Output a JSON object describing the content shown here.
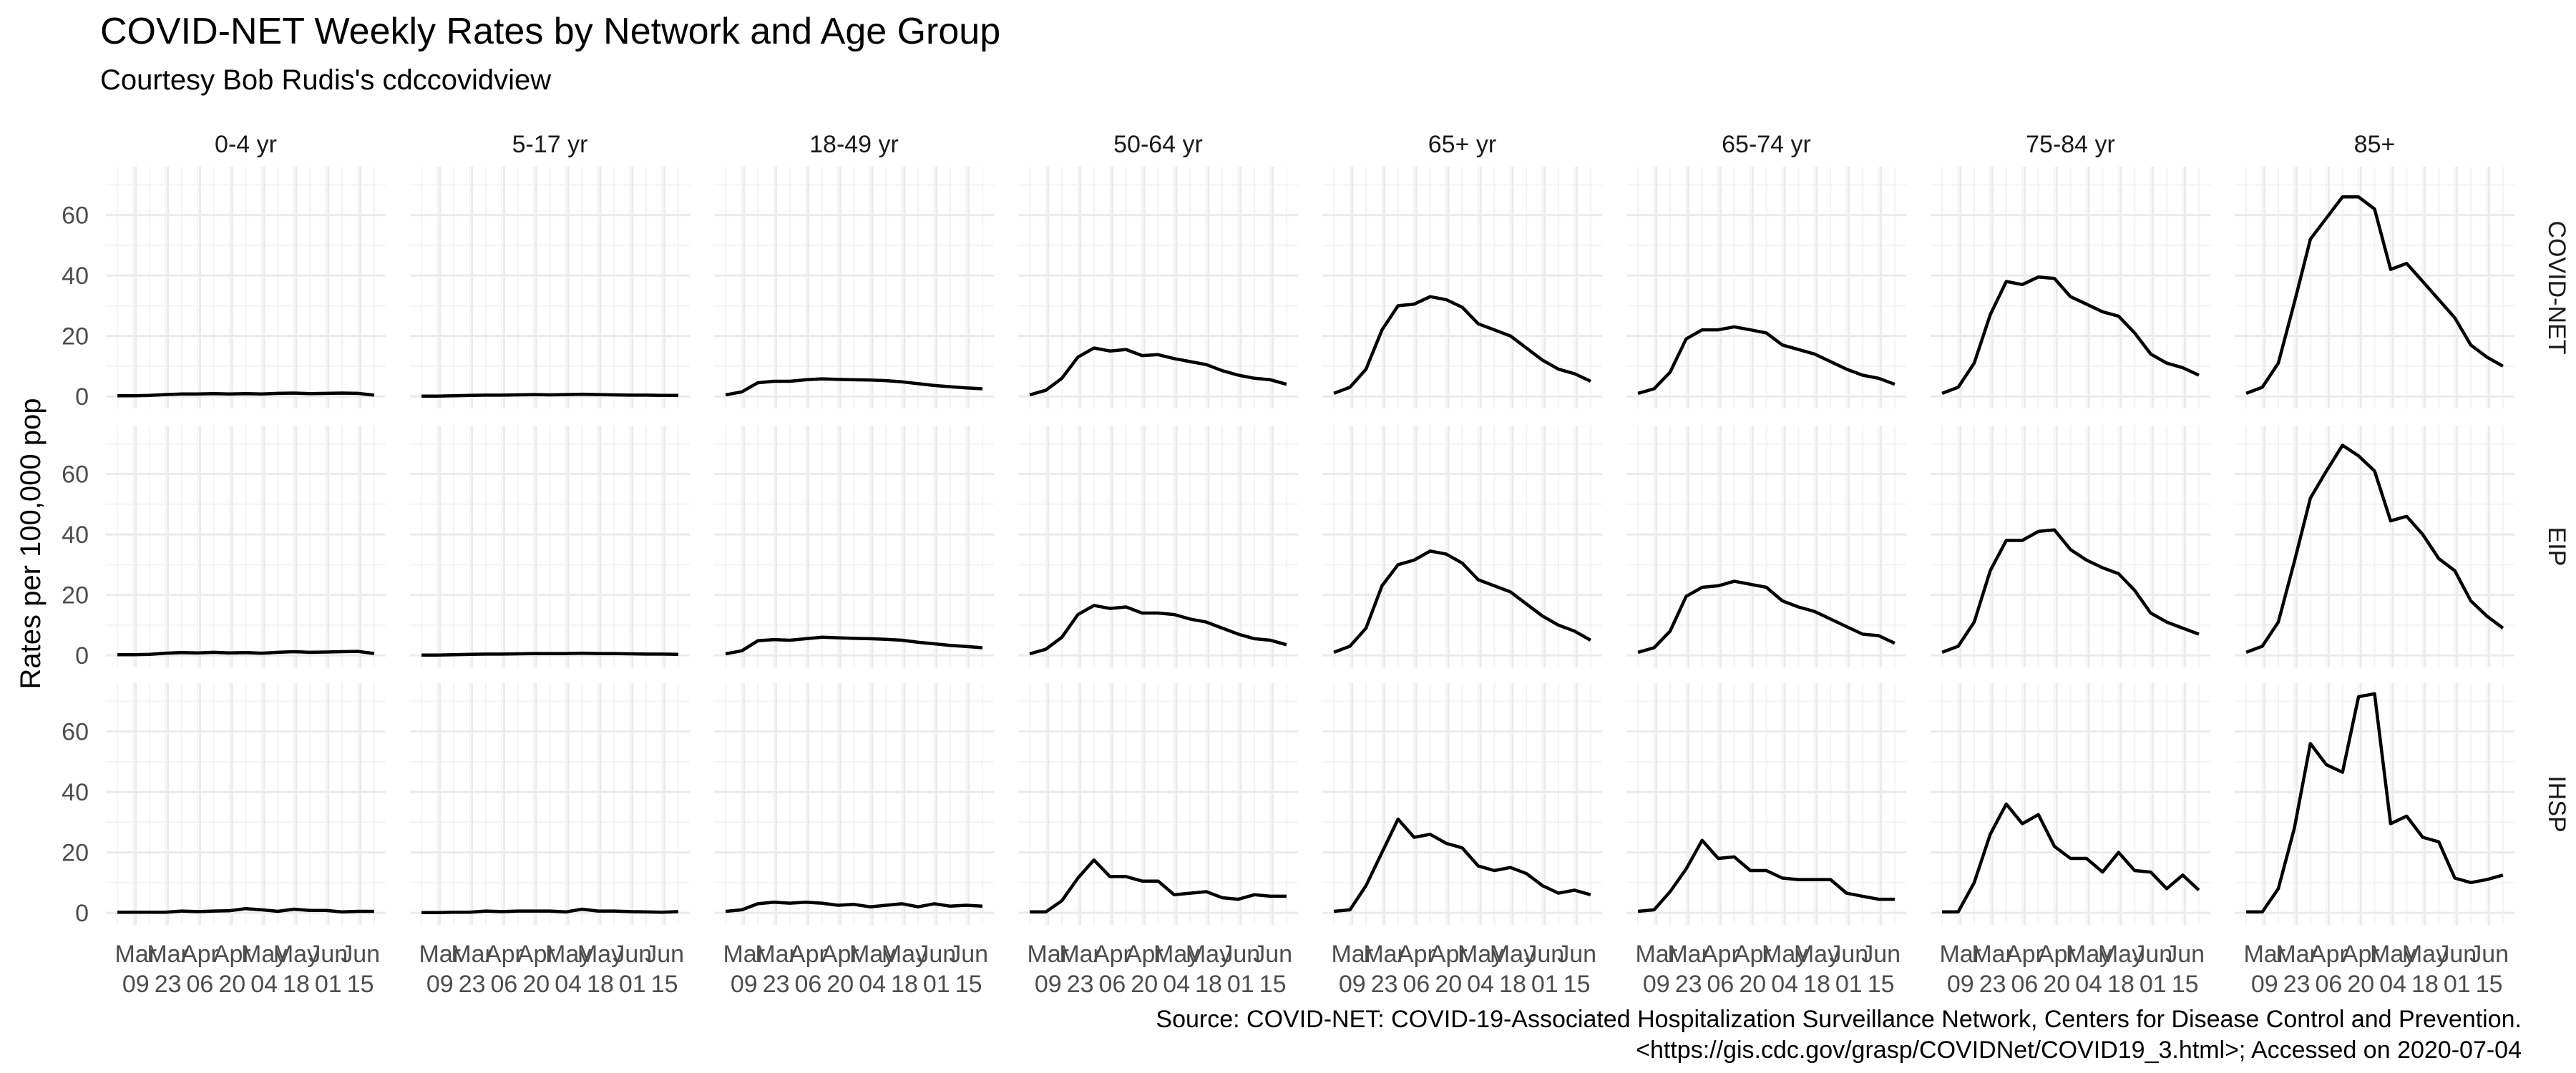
{
  "chart_data": {
    "type": "line",
    "title": "COVID-NET Weekly Rates by Network and Age Group",
    "subtitle": "Courtesy Bob Rudis's cdccovidview",
    "ylabel": "Rates per 100,000 pop",
    "xlabel": "",
    "ylim": [
      -4,
      76
    ],
    "y_ticks": [
      0,
      20,
      40,
      60
    ],
    "x_ticks": [
      "Mar\n09",
      "Mar\n23",
      "Apr\n06",
      "Apr\n20",
      "May\n04",
      "May\n18",
      "Jun\n01",
      "Jun\n15"
    ],
    "x_dates": [
      "2020-03-01",
      "2020-03-08",
      "2020-03-15",
      "2020-03-22",
      "2020-03-29",
      "2020-04-05",
      "2020-04-12",
      "2020-04-19",
      "2020-04-26",
      "2020-05-03",
      "2020-05-10",
      "2020-05-17",
      "2020-05-24",
      "2020-05-31",
      "2020-06-07",
      "2020-06-14",
      "2020-06-21"
    ],
    "grid": true,
    "line_color": "#000000",
    "age_groups": [
      "0-4 yr",
      "5-17 yr",
      "18-49 yr",
      "50-64 yr",
      "65+ yr",
      "65-74 yr",
      "75-84 yr",
      "85+"
    ],
    "networks": [
      "COVID-NET",
      "EIP",
      "IHSP"
    ],
    "panels": [
      [
        [
          0.2,
          0.2,
          0.3,
          0.6,
          0.8,
          0.8,
          0.9,
          0.8,
          0.9,
          0.8,
          1.0,
          1.1,
          0.9,
          1.0,
          1.1,
          1.0,
          0.4
        ],
        [
          0.1,
          0.1,
          0.2,
          0.3,
          0.4,
          0.4,
          0.5,
          0.6,
          0.5,
          0.6,
          0.7,
          0.6,
          0.5,
          0.4,
          0.4,
          0.3,
          0.3
        ],
        [
          0.5,
          1.5,
          4.5,
          5.0,
          5.0,
          5.5,
          5.8,
          5.6,
          5.5,
          5.4,
          5.2,
          4.8,
          4.2,
          3.6,
          3.2,
          2.8,
          2.5
        ],
        [
          0.5,
          2.0,
          6.0,
          13.0,
          16.0,
          15.0,
          15.5,
          13.5,
          13.8,
          12.5,
          11.5,
          10.5,
          8.5,
          7.0,
          6.0,
          5.5,
          4.0
        ],
        [
          1.0,
          3.0,
          9.0,
          22.0,
          30.0,
          30.5,
          33.0,
          32.0,
          29.5,
          24.0,
          22.0,
          20.0,
          16.0,
          12.0,
          9.0,
          7.5,
          5.0
        ],
        [
          1.0,
          2.5,
          8.0,
          19.0,
          22.0,
          22.0,
          23.0,
          22.0,
          21.0,
          17.0,
          15.5,
          14.0,
          11.5,
          9.0,
          7.0,
          6.0,
          4.0
        ],
        [
          1.0,
          3.0,
          11.0,
          27.0,
          38.0,
          37.0,
          39.5,
          39.0,
          33.0,
          30.5,
          28.0,
          26.5,
          21.0,
          14.0,
          11.0,
          9.5,
          7.0
        ],
        [
          1.0,
          3.0,
          11.0,
          31.0,
          52.0,
          59.0,
          66.0,
          66.0,
          62.0,
          42.0,
          44.0,
          38.0,
          32.0,
          26.0,
          17.0,
          13.0,
          10.0
        ]
      ],
      [
        [
          0.2,
          0.2,
          0.3,
          0.7,
          0.9,
          0.8,
          1.0,
          0.8,
          0.9,
          0.7,
          1.0,
          1.2,
          1.0,
          1.1,
          1.2,
          1.3,
          0.6
        ],
        [
          0.1,
          0.1,
          0.2,
          0.3,
          0.4,
          0.4,
          0.5,
          0.6,
          0.6,
          0.6,
          0.7,
          0.6,
          0.6,
          0.5,
          0.4,
          0.4,
          0.3
        ],
        [
          0.5,
          1.5,
          4.8,
          5.2,
          5.0,
          5.5,
          6.0,
          5.8,
          5.6,
          5.5,
          5.3,
          5.0,
          4.3,
          3.8,
          3.3,
          2.9,
          2.5
        ],
        [
          0.5,
          2.0,
          6.0,
          13.5,
          16.5,
          15.5,
          16.0,
          14.0,
          14.0,
          13.5,
          12.0,
          11.0,
          9.0,
          7.0,
          5.5,
          5.0,
          3.5
        ],
        [
          1.0,
          3.0,
          9.0,
          23.0,
          30.0,
          31.5,
          34.5,
          33.5,
          30.5,
          25.0,
          23.0,
          21.0,
          17.0,
          13.0,
          10.0,
          8.0,
          5.0
        ],
        [
          1.0,
          2.5,
          8.0,
          19.5,
          22.5,
          23.0,
          24.5,
          23.5,
          22.5,
          18.0,
          16.0,
          14.5,
          12.0,
          9.5,
          7.0,
          6.5,
          4.0
        ],
        [
          1.0,
          3.0,
          11.0,
          28.0,
          38.0,
          38.0,
          41.0,
          41.5,
          35.0,
          31.5,
          29.0,
          27.0,
          21.5,
          14.0,
          11.0,
          9.0,
          7.0
        ],
        [
          1.0,
          3.0,
          11.0,
          31.0,
          52.0,
          61.0,
          69.5,
          66.0,
          61.0,
          44.5,
          46.0,
          40.0,
          32.0,
          28.0,
          18.0,
          13.0,
          9.0
        ]
      ],
      [
        [
          0.2,
          0.2,
          0.2,
          0.2,
          0.6,
          0.4,
          0.6,
          0.7,
          1.4,
          1.0,
          0.5,
          1.2,
          0.8,
          0.8,
          0.3,
          0.5,
          0.5
        ],
        [
          0.1,
          0.1,
          0.2,
          0.2,
          0.6,
          0.4,
          0.6,
          0.6,
          0.6,
          0.3,
          1.2,
          0.6,
          0.6,
          0.4,
          0.3,
          0.2,
          0.4
        ],
        [
          0.5,
          1.0,
          3.0,
          3.5,
          3.2,
          3.5,
          3.2,
          2.5,
          2.8,
          2.0,
          2.5,
          3.0,
          2.0,
          3.0,
          2.2,
          2.5,
          2.2
        ],
        [
          0.3,
          0.3,
          4.0,
          11.5,
          17.5,
          12.0,
          12.0,
          10.5,
          10.5,
          6.0,
          6.5,
          7.0,
          5.0,
          4.5,
          6.0,
          5.5,
          5.5
        ],
        [
          0.5,
          1.0,
          9.0,
          20.0,
          31.0,
          25.0,
          26.0,
          23.0,
          21.5,
          15.5,
          14.0,
          15.0,
          13.0,
          9.0,
          6.5,
          7.5,
          6.0
        ],
        [
          0.5,
          1.0,
          7.0,
          14.5,
          24.0,
          18.0,
          18.5,
          14.0,
          14.0,
          11.5,
          11.0,
          11.0,
          11.0,
          6.5,
          5.5,
          4.5,
          4.5
        ],
        [
          0.3,
          0.3,
          10.0,
          26.0,
          36.0,
          29.5,
          32.5,
          22.0,
          18.0,
          18.0,
          13.5,
          20.0,
          14.0,
          13.5,
          8.0,
          12.5,
          7.5
        ],
        [
          0.3,
          0.3,
          8.0,
          28.0,
          56.0,
          49.0,
          46.5,
          71.5,
          72.5,
          29.5,
          32.0,
          25.0,
          23.5,
          11.5,
          10.0,
          11.0,
          12.5
        ]
      ]
    ]
  },
  "caption": {
    "line1": "Source: COVID-NET: COVID-19-Associated Hospitalization Surveillance Network, Centers for Disease Control and Prevention.",
    "line2": "<https://gis.cdc.gov/grasp/COVIDNet/COVID19_3.html>; Accessed on 2020-07-04"
  },
  "colors": {
    "panel_background": "#ffffff",
    "grid_major": "#ebebeb",
    "grid_minor": "#f4f4f4",
    "line": "#000000",
    "axis_text": "#4d4d4d"
  }
}
